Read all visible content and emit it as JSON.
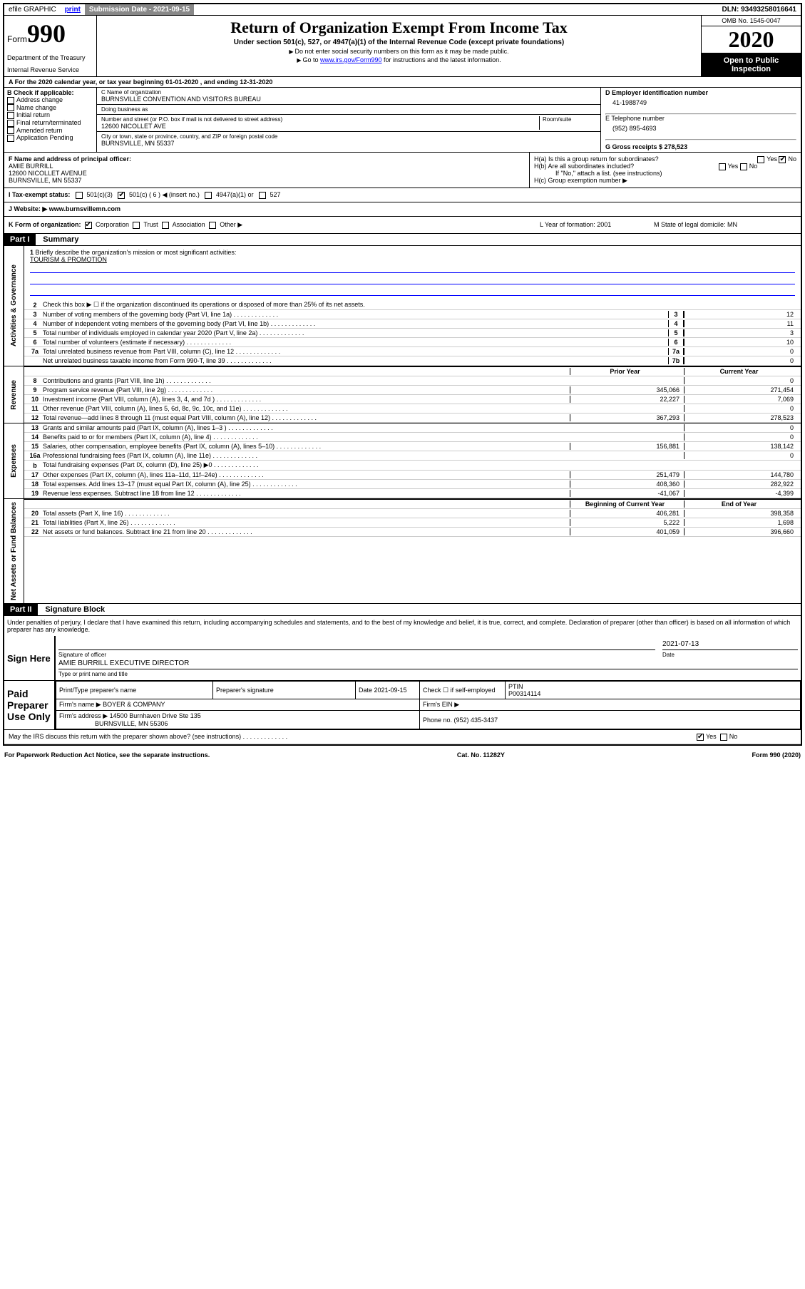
{
  "topbar": {
    "efile": "efile GRAPHIC",
    "print": "print",
    "sub_date_label": "Submission Date - 2021-09-15",
    "dln": "DLN: 93493258016641"
  },
  "header": {
    "form_label": "Form",
    "form_number": "990",
    "dept": "Department of the Treasury",
    "irs": "Internal Revenue Service",
    "title": "Return of Organization Exempt From Income Tax",
    "subtitle": "Under section 501(c), 527, or 4947(a)(1) of the Internal Revenue Code (except private foundations)",
    "note1": "Do not enter social security numbers on this form as it may be made public.",
    "note2_pre": "Go to ",
    "note2_link": "www.irs.gov/Form990",
    "note2_post": " for instructions and the latest information.",
    "omb": "OMB No. 1545-0047",
    "year": "2020",
    "open": "Open to Public Inspection"
  },
  "sectionA": {
    "text": "For the 2020 calendar year, or tax year beginning 01-01-2020    , and ending 12-31-2020"
  },
  "sectionB": {
    "title": "B Check if applicable:",
    "items": [
      "Address change",
      "Name change",
      "Initial return",
      "Final return/terminated",
      "Amended return",
      "Application Pending"
    ]
  },
  "sectionC": {
    "name_label": "C Name of organization",
    "name": "BURNSVILLE CONVENTION AND VISITORS BUREAU",
    "dba_label": "Doing business as",
    "dba": "",
    "street_label": "Number and street (or P.O. box if mail is not delivered to street address)",
    "street": "12600 NICOLLET AVE",
    "room_label": "Room/suite",
    "city_label": "City or town, state or province, country, and ZIP or foreign postal code",
    "city": "BURNSVILLE, MN  55337"
  },
  "sectionD": {
    "label": "D Employer identification number",
    "ein": "41-1988749"
  },
  "sectionE": {
    "label": "E Telephone number",
    "phone": "(952) 895-4693"
  },
  "sectionG": {
    "label": "G Gross receipts $ 278,523"
  },
  "sectionF": {
    "label": "F  Name and address of principal officer:",
    "name": "AMIE BURRILL",
    "addr1": "12600 NICOLLET AVENUE",
    "addr2": "BURNSVILLE, MN  55337"
  },
  "sectionH": {
    "ha": "H(a)  Is this a group return for subordinates?",
    "hb": "H(b)  Are all subordinates included?",
    "hb_note": "If \"No,\" attach a list. (see instructions)",
    "hc": "H(c)  Group exemption number ▶",
    "yes": "Yes",
    "no": "No"
  },
  "sectionI": {
    "label": "I  Tax-exempt status:",
    "opt1": "501(c)(3)",
    "opt2": "501(c) ( 6 ) ◀ (insert no.)",
    "opt3": "4947(a)(1) or",
    "opt4": "527"
  },
  "sectionJ": {
    "label": "J  Website: ▶",
    "url": "www.burnsvillemn.com"
  },
  "sectionK": {
    "label": "K Form of organization:",
    "opts": [
      "Corporation",
      "Trust",
      "Association",
      "Other ▶"
    ],
    "l_label": "L Year of formation: 2001",
    "m_label": "M State of legal domicile: MN"
  },
  "part1": {
    "header": "Part I",
    "title": "Summary",
    "q1": "Briefly describe the organization's mission or most significant activities:",
    "mission": "TOURISM & PROMOTION",
    "q2": "Check this box ▶ ☐  if the organization discontinued its operations or disposed of more than 25% of its net assets.",
    "prior_year": "Prior Year",
    "current_year": "Current Year",
    "begin_year": "Beginning of Current Year",
    "end_year": "End of Year"
  },
  "activities_lines": [
    {
      "n": "3",
      "t": "Number of voting members of the governing body (Part VI, line 1a)",
      "box": "3",
      "v": "12"
    },
    {
      "n": "4",
      "t": "Number of independent voting members of the governing body (Part VI, line 1b)",
      "box": "4",
      "v": "11"
    },
    {
      "n": "5",
      "t": "Total number of individuals employed in calendar year 2020 (Part V, line 2a)",
      "box": "5",
      "v": "3"
    },
    {
      "n": "6",
      "t": "Total number of volunteers (estimate if necessary)",
      "box": "6",
      "v": "10"
    },
    {
      "n": "7a",
      "t": "Total unrelated business revenue from Part VIII, column (C), line 12",
      "box": "7a",
      "v": "0"
    },
    {
      "n": "",
      "t": "Net unrelated business taxable income from Form 990-T, line 39",
      "box": "7b",
      "v": "0"
    }
  ],
  "revenue_lines": [
    {
      "n": "8",
      "t": "Contributions and grants (Part VIII, line 1h)",
      "py": "",
      "cy": "0"
    },
    {
      "n": "9",
      "t": "Program service revenue (Part VIII, line 2g)",
      "py": "345,066",
      "cy": "271,454"
    },
    {
      "n": "10",
      "t": "Investment income (Part VIII, column (A), lines 3, 4, and 7d )",
      "py": "22,227",
      "cy": "7,069"
    },
    {
      "n": "11",
      "t": "Other revenue (Part VIII, column (A), lines 5, 6d, 8c, 9c, 10c, and 11e)",
      "py": "",
      "cy": "0"
    },
    {
      "n": "12",
      "t": "Total revenue—add lines 8 through 11 (must equal Part VIII, column (A), line 12)",
      "py": "367,293",
      "cy": "278,523"
    }
  ],
  "expense_lines": [
    {
      "n": "13",
      "t": "Grants and similar amounts paid (Part IX, column (A), lines 1–3 )",
      "py": "",
      "cy": "0"
    },
    {
      "n": "14",
      "t": "Benefits paid to or for members (Part IX, column (A), line 4)",
      "py": "",
      "cy": "0"
    },
    {
      "n": "15",
      "t": "Salaries, other compensation, employee benefits (Part IX, column (A), lines 5–10)",
      "py": "156,881",
      "cy": "138,142"
    },
    {
      "n": "16a",
      "t": "Professional fundraising fees (Part IX, column (A), line 11e)",
      "py": "",
      "cy": "0"
    },
    {
      "n": "b",
      "t": "Total fundraising expenses (Part IX, column (D), line 25) ▶0",
      "py": "shaded",
      "cy": "shaded"
    },
    {
      "n": "17",
      "t": "Other expenses (Part IX, column (A), lines 11a–11d, 11f–24e)",
      "py": "251,479",
      "cy": "144,780"
    },
    {
      "n": "18",
      "t": "Total expenses. Add lines 13–17 (must equal Part IX, column (A), line 25)",
      "py": "408,360",
      "cy": "282,922"
    },
    {
      "n": "19",
      "t": "Revenue less expenses. Subtract line 18 from line 12",
      "py": "-41,067",
      "cy": "-4,399"
    }
  ],
  "netassets_lines": [
    {
      "n": "20",
      "t": "Total assets (Part X, line 16)",
      "py": "406,281",
      "cy": "398,358"
    },
    {
      "n": "21",
      "t": "Total liabilities (Part X, line 26)",
      "py": "5,222",
      "cy": "1,698"
    },
    {
      "n": "22",
      "t": "Net assets or fund balances. Subtract line 21 from line 20",
      "py": "401,059",
      "cy": "396,660"
    }
  ],
  "vert_labels": {
    "ag": "Activities & Governance",
    "rev": "Revenue",
    "exp": "Expenses",
    "na": "Net Assets or Fund Balances"
  },
  "part2": {
    "header": "Part II",
    "title": "Signature Block",
    "penalties": "Under penalties of perjury, I declare that I have examined this return, including accompanying schedules and statements, and to the best of my knowledge and belief, it is true, correct, and complete. Declaration of preparer (other than officer) is based on all information of which preparer has any knowledge.",
    "sign_here": "Sign Here",
    "sig_officer": "Signature of officer",
    "sig_date": "2021-07-13",
    "date_label": "Date",
    "officer_name": "AMIE BURRILL  EXECUTIVE DIRECTOR",
    "type_name": "Type or print name and title",
    "paid_prep": "Paid Preparer Use Only",
    "prep_name_label": "Print/Type preparer's name",
    "prep_sig_label": "Preparer's signature",
    "prep_date": "Date\n2021-09-15",
    "check_self": "Check ☐ if self-employed",
    "ptin_label": "PTIN",
    "ptin": "P00314114",
    "firm_name_label": "Firm's name    ▶",
    "firm_name": "BOYER & COMPANY",
    "firm_ein_label": "Firm's EIN ▶",
    "firm_addr_label": "Firm's address ▶",
    "firm_addr1": "14500 Burnhaven Drive Ste 135",
    "firm_addr2": "BURNSVILLE, MN  55306",
    "firm_phone_label": "Phone no. (952) 435-3437",
    "may_irs": "May the IRS discuss this return with the preparer shown above? (see instructions)"
  },
  "footer": {
    "paperwork": "For Paperwork Reduction Act Notice, see the separate instructions.",
    "cat": "Cat. No. 11282Y",
    "form": "Form 990 (2020)"
  }
}
